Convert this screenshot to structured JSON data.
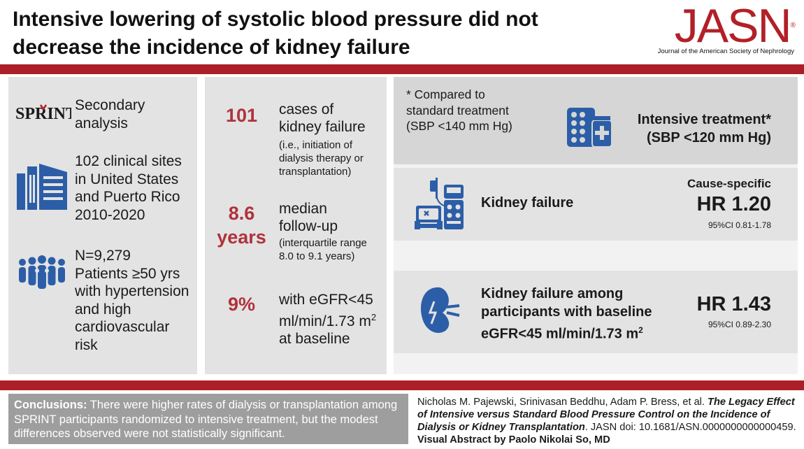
{
  "header": {
    "title_line1": "Intensive lowering of systolic blood pressure did not",
    "title_line2": "decrease the incidence of kidney failure",
    "logo_text": "JASN",
    "logo_mark": "®",
    "logo_subtitle": "Journal of the American Society of Nephrology"
  },
  "left_column": {
    "sprint_logo": "SPRINT",
    "analysis_type": [
      "Secondary",
      "analysis"
    ],
    "sites": [
      "102 clinical sites",
      "in United States",
      "and Puerto Rico",
      "2010-2020"
    ],
    "patients": [
      "N=9,279",
      "Patients ≥50 yrs",
      "with hypertension",
      "and high",
      "cardiovascular",
      "risk"
    ]
  },
  "stats": [
    {
      "number": "101",
      "main": [
        "cases of",
        "kidney failure"
      ],
      "sub": [
        "(i.e., initiation of",
        "dialysis therapy or",
        "transplantation)"
      ]
    },
    {
      "number_line1": "8.6",
      "number_line2": "years",
      "main": [
        "median",
        "follow-up"
      ],
      "sub": [
        "(interquartile range",
        "8.0 to 9.1 years)"
      ]
    },
    {
      "number": "9%",
      "main": [
        "with eGFR<45",
        "ml/min/1.73 m",
        "at baseline"
      ],
      "superscript": "2"
    }
  ],
  "results": {
    "note": [
      "* Compared to",
      "standard treatment",
      "(SBP <140 mm Hg)"
    ],
    "intensive": [
      "Intensive treatment*",
      "(SBP <120 mm Hg)"
    ],
    "kidney_failure": {
      "label": "Kidney failure",
      "cause_specific": "Cause-specific",
      "hr": "HR 1.20",
      "ci": "95%CI  0.81-1.78"
    },
    "kidney_failure_baseline": {
      "label": [
        "Kidney failure among",
        "participants with baseline",
        "eGFR<45 ml/min/1.73 m"
      ],
      "superscript": "2",
      "hr": "HR 1.43",
      "ci": "95%CI  0.89-2.30"
    }
  },
  "conclusion": {
    "label": "Conclusions:",
    "text": " There were higher rates of dialysis or transplantation among SPRINT participants randomized to intensive treatment, but the modest differences observed were not statistically significant."
  },
  "citation": {
    "authors": "Nicholas M. Pajewski, Srinivasan Beddhu, Adam P. Bress, et al. ",
    "title": "The Legacy Effect of Intensive versus Standard Blood Pressure Control on the Incidence of Dialysis or Kidney Transplantation",
    "journal": ". JASN doi: 10.1681/ASN.0000000000000459. ",
    "credit": "Visual Abstract by Paolo Nikolai So, MD"
  },
  "colors": {
    "brand_red": "#ad1f28",
    "stat_red": "#b0323b",
    "icon_blue": "#2c5ea8",
    "panel_gray": "#e3e3e3"
  }
}
